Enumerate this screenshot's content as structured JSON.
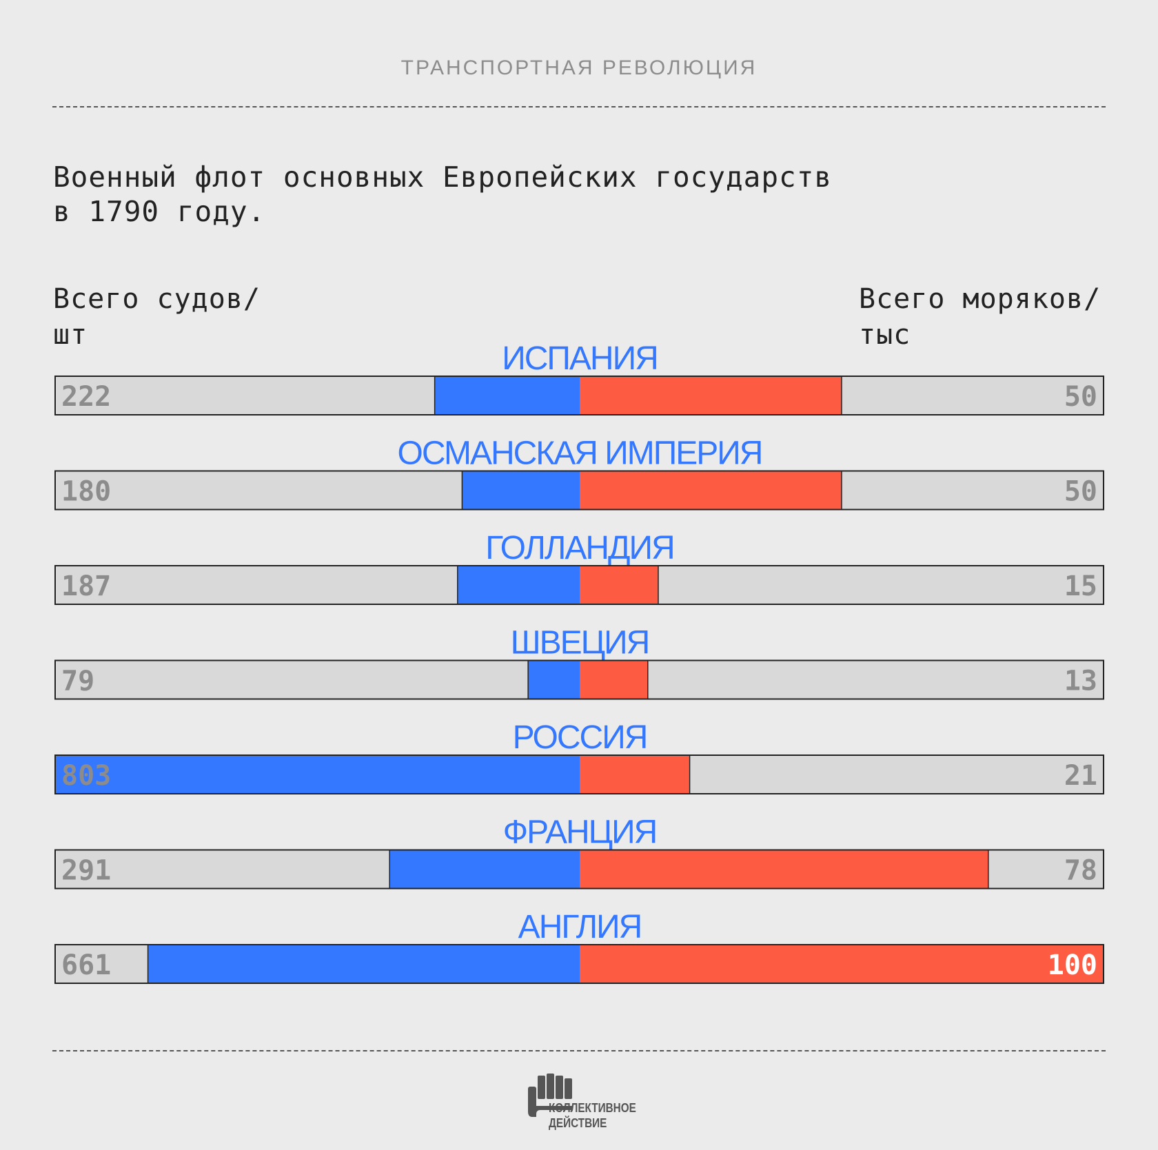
{
  "header": {
    "title": "ТРАНСПОРТНАЯ РЕВОЛЮЦИЯ"
  },
  "chart_title_lines": [
    "Военный флот основных Европейских государств",
    "в 1790 году."
  ],
  "axis": {
    "left_label": [
      "Всего судов/",
      "шт"
    ],
    "right_label": [
      "Всего моряков/",
      "тыс"
    ]
  },
  "colors": {
    "background": "#ebebeb",
    "track": "#d9d9d9",
    "ships": "#3478ff",
    "sailors": "#fd5c42",
    "country_label": "#3478ff",
    "value_text": "#8c8c8c",
    "value_text_on_bar": "#ffffff"
  },
  "chart_data": {
    "type": "bar",
    "orientation": "horizontal-diverging",
    "categories": [
      "ИСПАНИЯ",
      "ОСМАНСКАЯ ИМПЕРИЯ",
      "ГОЛЛАНДИЯ",
      "ШВЕЦИЯ",
      "РОССИЯ",
      "ФРАНЦИЯ",
      "АНГЛИЯ"
    ],
    "series": [
      {
        "values": [
          222,
          180,
          187,
          79,
          803,
          291,
          661
        ]
      },
      {
        "values": [
          50,
          50,
          15,
          13,
          21,
          78,
          100
        ]
      }
    ],
    "left_axis_max": 803,
    "right_axis_max": 100
  },
  "logo": {
    "name": "fist-logo-icon",
    "text": [
      "КОЛЛЕКТИВНОЕ",
      "ДЕЙСТВИЕ"
    ]
  }
}
